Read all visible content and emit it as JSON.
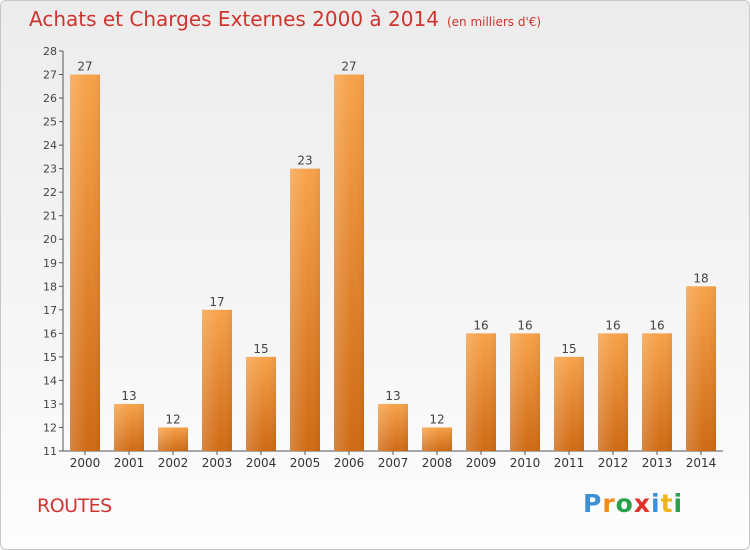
{
  "chart_data": {
    "type": "bar",
    "title": "Achats et Charges Externes 2000 à 2014",
    "subtitle": "(en milliers d'€)",
    "categories": [
      "2000",
      "2001",
      "2002",
      "2003",
      "2004",
      "2005",
      "2006",
      "2007",
      "2008",
      "2009",
      "2010",
      "2011",
      "2012",
      "2013",
      "2014"
    ],
    "values": [
      27,
      13,
      12,
      17,
      15,
      23,
      27,
      13,
      12,
      16,
      16,
      15,
      16,
      16,
      18
    ],
    "ylim": [
      11,
      28
    ],
    "yticks": [
      11,
      12,
      13,
      14,
      15,
      16,
      17,
      18,
      19,
      20,
      21,
      22,
      23,
      24,
      25,
      26,
      27,
      28
    ],
    "grid": false,
    "bar_color": "#f0912f",
    "bar_color_dark": "#cf6a14"
  },
  "footer": {
    "label": "ROUTES"
  },
  "logo": {
    "letters": [
      "P",
      "r",
      "o",
      "x",
      "i",
      "t",
      "i"
    ],
    "colors": [
      "#3d8fd6",
      "#f28c1e",
      "#2aa04a",
      "#e0312a",
      "#3d8fd6",
      "#f2b41e",
      "#2aa04a"
    ]
  }
}
